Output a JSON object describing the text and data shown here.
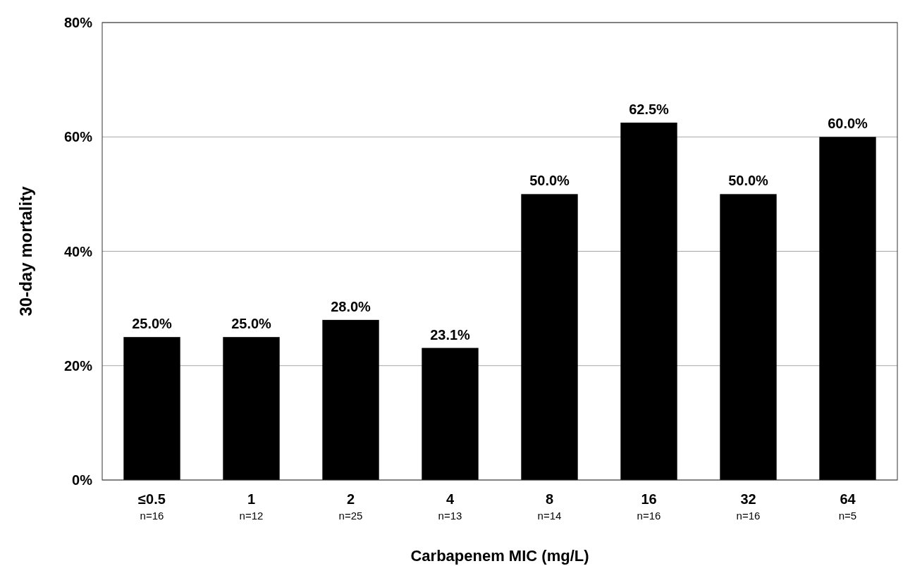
{
  "chart_data": {
    "type": "bar",
    "categories": [
      "≤0.5\nn=16",
      "1\nn=12",
      "2\nn=25",
      "4\nn=13",
      "8\nn=14",
      "16\nn=16",
      "32\nn=16",
      "64\nn=5"
    ],
    "values": [
      25.0,
      25.0,
      28.0,
      23.1,
      50.0,
      62.5,
      50.0,
      60.0
    ],
    "value_labels": [
      "25.0%",
      "25.0%",
      "28.0%",
      "23.1%",
      "50.0%",
      "62.5%",
      "50.0%",
      "60.0%"
    ],
    "color": "#000000",
    "ylim": [
      0,
      80
    ],
    "yticks": [
      {
        "value": 0,
        "label": "0%"
      },
      {
        "value": 20,
        "label": "20%"
      },
      {
        "value": 40,
        "label": "40%"
      },
      {
        "value": 60,
        "label": "60%"
      },
      {
        "value": 80,
        "label": "80%"
      }
    ],
    "grid": "y",
    "xlabel": "Carbapenem MIC (mg/L)",
    "ylabel": "30-day mortality"
  }
}
